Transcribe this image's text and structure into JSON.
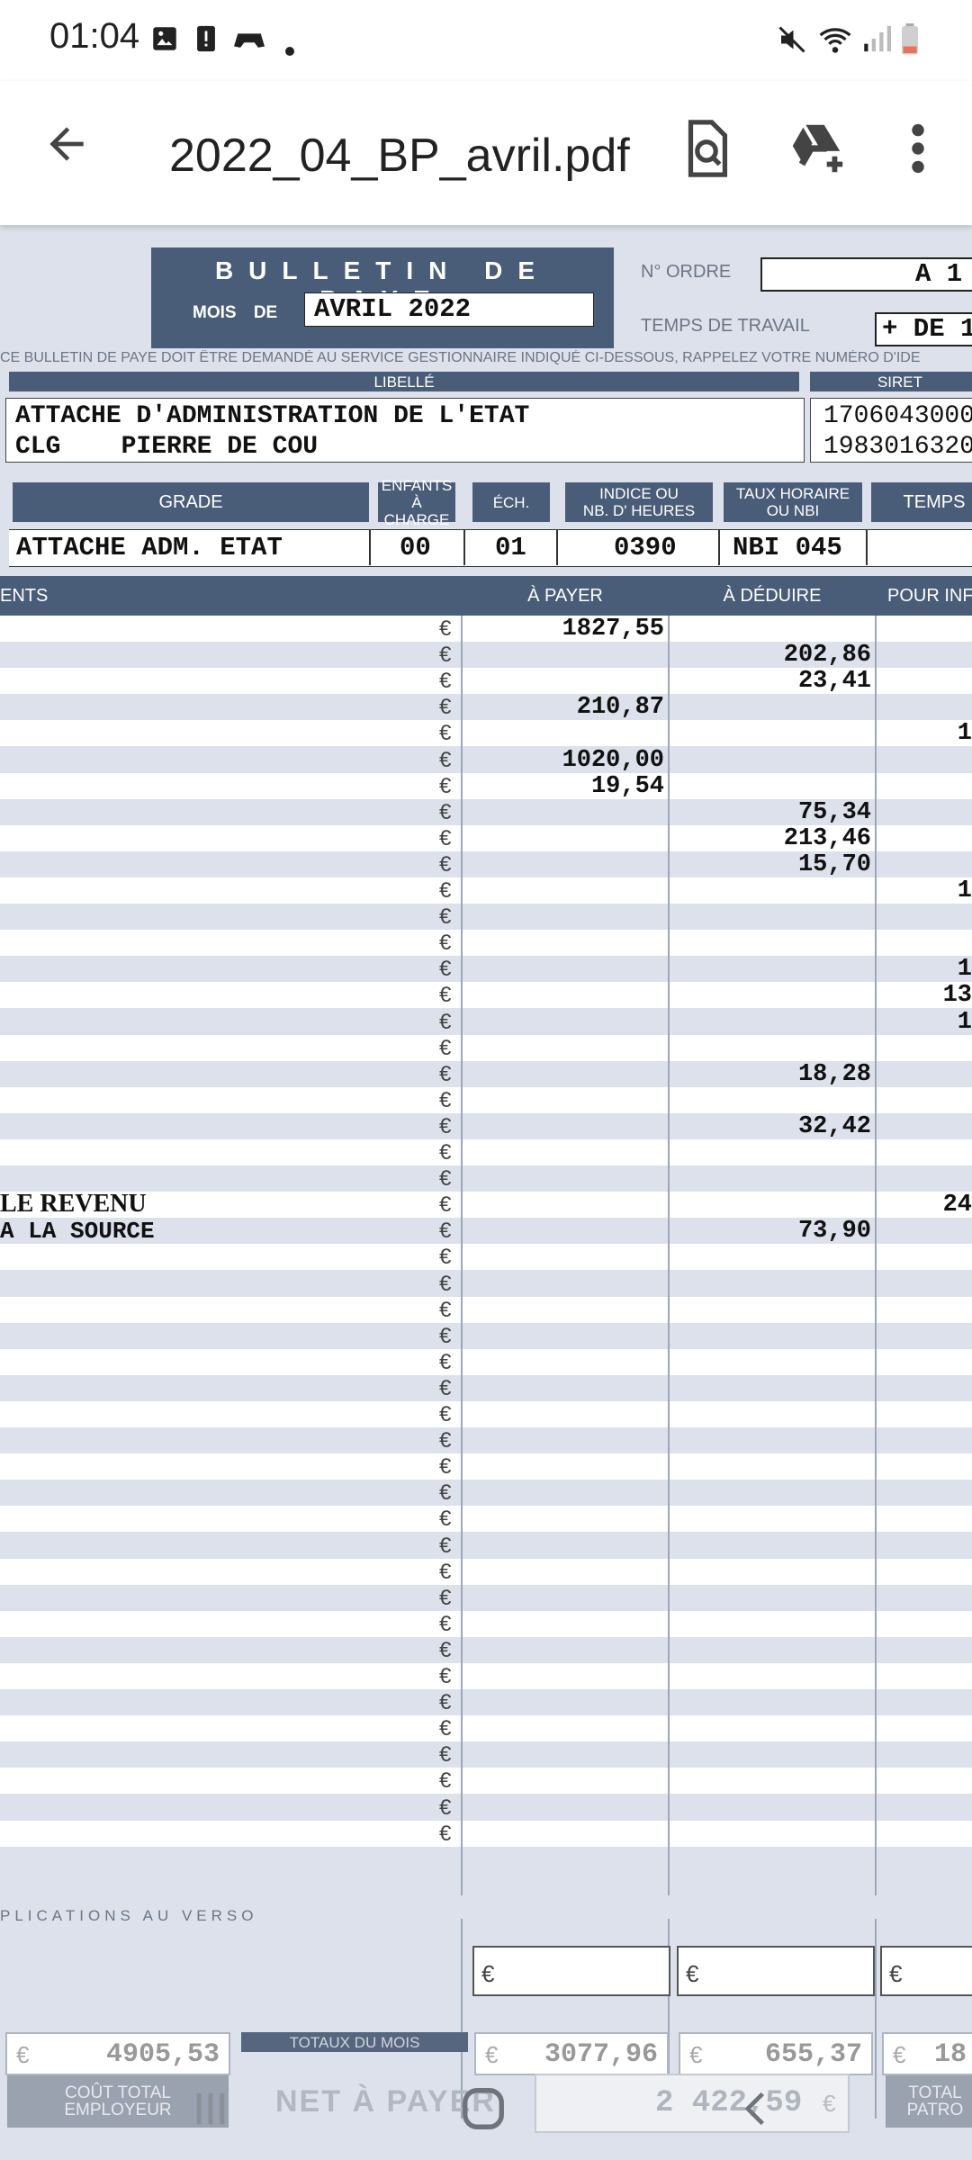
{
  "status_bar": {
    "time": "01:04",
    "left_icons": [
      "image-icon",
      "alert-icon",
      "game-controller-icon",
      "dot-icon"
    ],
    "right_icons": [
      "mute-icon",
      "wifi-icon",
      "signal-icon",
      "battery-icon"
    ]
  },
  "app_bar": {
    "title": "2022_04_BP_avril.pdf",
    "actions": [
      "search-document-icon",
      "add-to-drive-icon",
      "more-options-icon"
    ]
  },
  "document": {
    "header": {
      "title": "BULLETIN DE PAYE",
      "mois_label": "MOIS DE",
      "mois_value": "AVRIL 2022",
      "ordre_label": "N° ORDRE",
      "ordre_value": "A 1",
      "temps_label": "TEMPS DE TRAVAIL",
      "temps_value": "+ DE 1",
      "notice": "CE BULLETIN DE PAYE DOIT ÊTRE DEMANDÉ AU SERVICE GESTIONNAIRE INDIQUÉ CI-DESSOUS, RAPPELEZ VOTRE NUMÉRO D'IDE"
    },
    "libelle": {
      "header": "LIBELLÉ",
      "line1": "ATTACHE D'ADMINISTRATION DE L'ETAT",
      "line2": "CLG    PIERRE DE COU"
    },
    "siret": {
      "header": "SIRET",
      "line1": "1706043000",
      "line2": "1983016320"
    },
    "grade_table": {
      "headers": [
        "GRADE",
        "ENFANTS\nÀ CHARGE",
        "ÉCH.",
        "INDICE OU\nNB. D' HEURES",
        "TAUX HORAIRE\nOU NBI",
        "TEMPS"
      ],
      "values": [
        "ATTACHE ADM. ETAT",
        "00",
        "01",
        "0390",
        "NBI 045",
        ""
      ]
    },
    "lines_table": {
      "headers": [
        "ENTS",
        "À PAYER",
        "À DÉDUIRE",
        "POUR INF"
      ],
      "currency": "€",
      "rows": [
        {
          "label": "",
          "payer": "1827,55",
          "deduire": "",
          "info": ""
        },
        {
          "label": "",
          "payer": "",
          "deduire": "202,86",
          "info": ""
        },
        {
          "label": "",
          "payer": "",
          "deduire": "23,41",
          "info": ""
        },
        {
          "label": "",
          "payer": "210,87",
          "deduire": "",
          "info": ""
        },
        {
          "label": "",
          "payer": "",
          "deduire": "",
          "info": "1"
        },
        {
          "label": "",
          "payer": "1020,00",
          "deduire": "",
          "info": ""
        },
        {
          "label": "",
          "payer": "19,54",
          "deduire": "",
          "info": ""
        },
        {
          "label": "",
          "payer": "",
          "deduire": "75,34",
          "info": ""
        },
        {
          "label": "",
          "payer": "",
          "deduire": "213,46",
          "info": ""
        },
        {
          "label": "",
          "payer": "",
          "deduire": "15,70",
          "info": ""
        },
        {
          "label": "",
          "payer": "",
          "deduire": "",
          "info": "1"
        },
        {
          "label": "",
          "payer": "",
          "deduire": "",
          "info": ""
        },
        {
          "label": "",
          "payer": "",
          "deduire": "",
          "info": ""
        },
        {
          "label": "",
          "payer": "",
          "deduire": "",
          "info": "1"
        },
        {
          "label": "",
          "payer": "",
          "deduire": "",
          "info": "13"
        },
        {
          "label": "",
          "payer": "",
          "deduire": "",
          "info": "1"
        },
        {
          "label": "",
          "payer": "",
          "deduire": "",
          "info": ""
        },
        {
          "label": "",
          "payer": "",
          "deduire": "18,28",
          "info": ""
        },
        {
          "label": "",
          "payer": "",
          "deduire": "",
          "info": ""
        },
        {
          "label": "",
          "payer": "",
          "deduire": "32,42",
          "info": ""
        },
        {
          "label": "",
          "payer": "",
          "deduire": "",
          "info": ""
        },
        {
          "label": "",
          "payer": "",
          "deduire": "",
          "info": ""
        },
        {
          "label": "LE REVENU",
          "payer": "",
          "deduire": "",
          "info": "24"
        },
        {
          "label": "A LA SOURCE",
          "payer": "",
          "deduire": "73,90",
          "info": ""
        },
        {
          "label": "",
          "payer": "",
          "deduire": "",
          "info": ""
        },
        {
          "label": "",
          "payer": "",
          "deduire": "",
          "info": ""
        },
        {
          "label": "",
          "payer": "",
          "deduire": "",
          "info": ""
        },
        {
          "label": "",
          "payer": "",
          "deduire": "",
          "info": ""
        },
        {
          "label": "",
          "payer": "",
          "deduire": "",
          "info": ""
        },
        {
          "label": "",
          "payer": "",
          "deduire": "",
          "info": ""
        },
        {
          "label": "",
          "payer": "",
          "deduire": "",
          "info": ""
        },
        {
          "label": "",
          "payer": "",
          "deduire": "",
          "info": ""
        },
        {
          "label": "",
          "payer": "",
          "deduire": "",
          "info": ""
        },
        {
          "label": "",
          "payer": "",
          "deduire": "",
          "info": ""
        },
        {
          "label": "",
          "payer": "",
          "deduire": "",
          "info": ""
        },
        {
          "label": "",
          "payer": "",
          "deduire": "",
          "info": ""
        },
        {
          "label": "",
          "payer": "",
          "deduire": "",
          "info": ""
        },
        {
          "label": "",
          "payer": "",
          "deduire": "",
          "info": ""
        },
        {
          "label": "",
          "payer": "",
          "deduire": "",
          "info": ""
        },
        {
          "label": "",
          "payer": "",
          "deduire": "",
          "info": ""
        },
        {
          "label": "",
          "payer": "",
          "deduire": "",
          "info": ""
        },
        {
          "label": "",
          "payer": "",
          "deduire": "",
          "info": ""
        },
        {
          "label": "",
          "payer": "",
          "deduire": "",
          "info": ""
        },
        {
          "label": "",
          "payer": "",
          "deduire": "",
          "info": ""
        },
        {
          "label": "",
          "payer": "",
          "deduire": "",
          "info": ""
        },
        {
          "label": "",
          "payer": "",
          "deduire": "",
          "info": ""
        },
        {
          "label": "",
          "payer": "",
          "deduire": "",
          "info": ""
        }
      ]
    },
    "footer": {
      "explications": "PLICATIONS AU VERSO",
      "euro": "€",
      "cout_total_value": "4905,53",
      "totaux_label": "TOTAUX DU MOIS",
      "total_payer": "3077,96",
      "total_deduire": "655,37",
      "total_info": "18",
      "cout_total_label": "COÛT TOTAL\nEMPLOYEUR",
      "net_label": "NET À PAYER",
      "net_value": "2 422,59",
      "net_currency": "€",
      "total_patronal_label": "TOTAL\nPATRO"
    }
  },
  "nav_bar": {
    "buttons": [
      "recent-apps-icon",
      "home-icon",
      "back-icon"
    ]
  },
  "colors": {
    "doc_bg": "#dde1ec",
    "header_bar": "#4a5d78"
  }
}
